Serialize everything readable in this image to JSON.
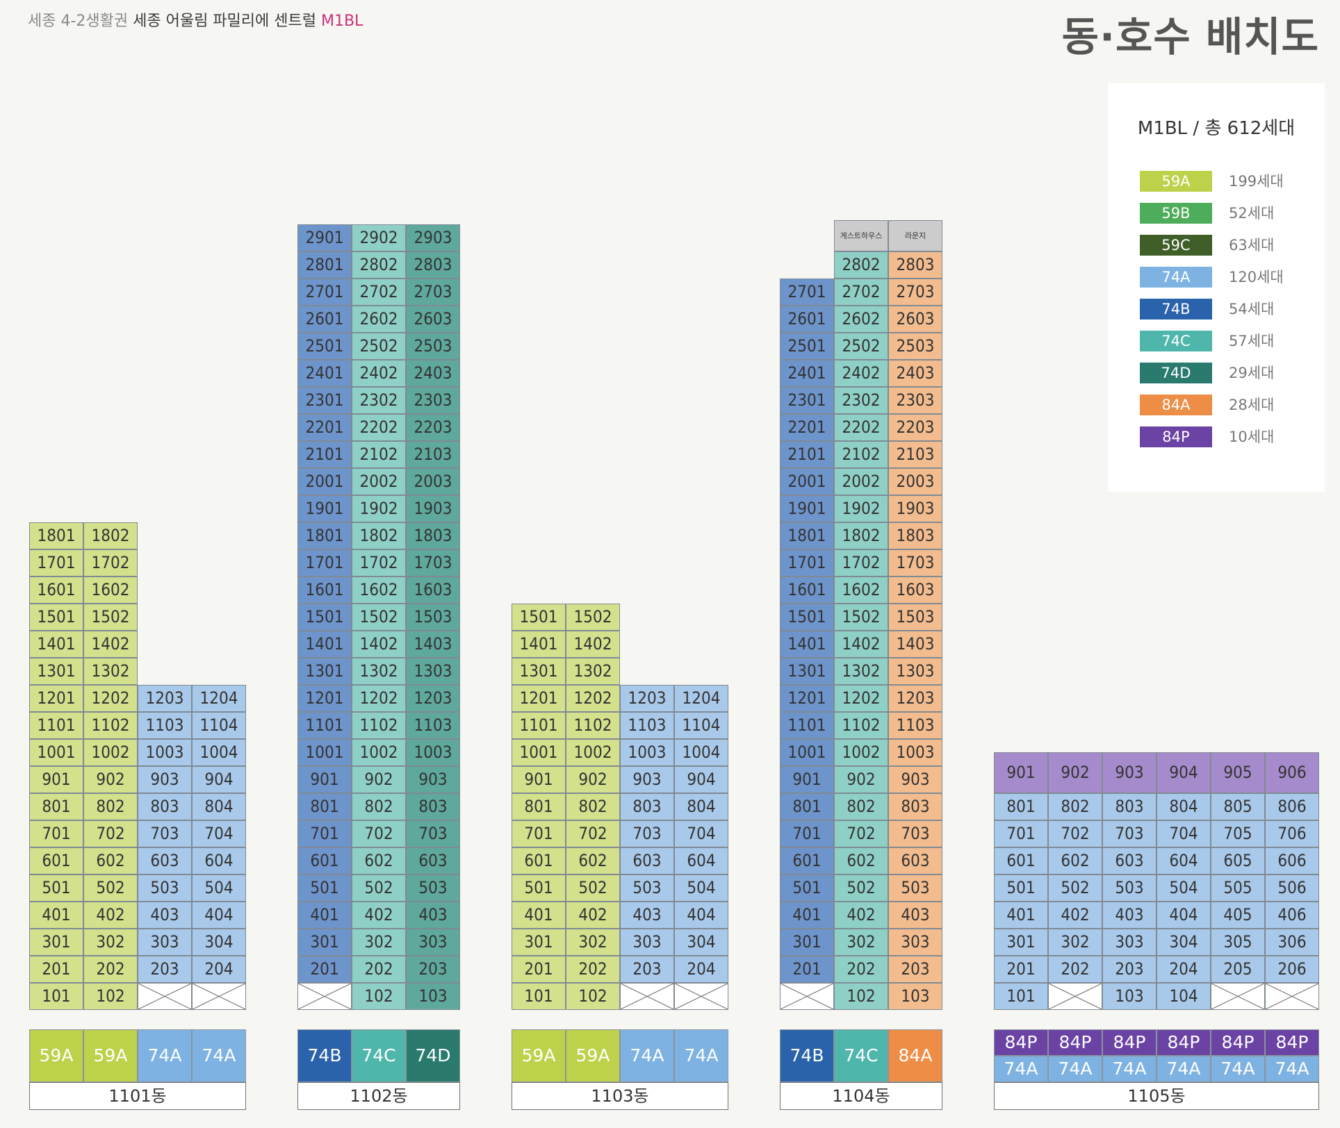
{
  "header": {
    "subtitle_a": "세종 4-2생활권 ",
    "subtitle_b": "세종 어울림 파밀리에 센트럴 ",
    "subtitle_c": "M1BL",
    "title": "동·호수 배치도"
  },
  "legend": {
    "title": "M1BL / 총 612세대",
    "items": [
      {
        "type": "59A",
        "count": "199세대"
      },
      {
        "type": "59B",
        "count": "52세대"
      },
      {
        "type": "59C",
        "count": "63세대"
      },
      {
        "type": "74A",
        "count": "120세대"
      },
      {
        "type": "74B",
        "count": "54세대"
      },
      {
        "type": "74C",
        "count": "57세대"
      },
      {
        "type": "74D",
        "count": "29세대"
      },
      {
        "type": "84A",
        "count": "28세대"
      },
      {
        "type": "84P",
        "count": "10세대"
      }
    ]
  },
  "colors": {
    "59A_cell": "#d3e08c",
    "59A": "#bdd14a",
    "59B": "#4dad5a",
    "59C": "#3f5e28",
    "74A_cell": "#a9c9ea",
    "74A": "#7eb2e2",
    "74B_cell": "#6e94cc",
    "74B": "#2a62ac",
    "74C_cell": "#8fd0c6",
    "74C": "#4fb6ab",
    "74D_cell": "#5ea89c",
    "74D": "#2a7a6e",
    "84A_cell": "#f3bc8e",
    "84A": "#ee8d46",
    "84P_cell": "#a58bcb",
    "84P": "#6a43a4",
    "special_cell": "#cccccc",
    "empty": "#ffffff"
  },
  "buildings": [
    {
      "name": "1101동",
      "lines": [
        {
          "type": "59A",
          "floors": [
            1,
            18
          ]
        },
        {
          "type": "59A",
          "floors": [
            1,
            18
          ]
        },
        {
          "type": "74A",
          "floors": [
            2,
            12
          ],
          "empty": [
            1
          ]
        },
        {
          "type": "74A",
          "floors": [
            2,
            12
          ],
          "empty": [
            1
          ]
        }
      ],
      "units": {
        "1": [
          "1801",
          "1701",
          "1601",
          "1501",
          "1401",
          "1301",
          "1201",
          "1101",
          "1001",
          "901",
          "801",
          "701",
          "601",
          "501",
          "401",
          "301",
          "201",
          "101"
        ],
        "2": [
          "1802",
          "1702",
          "1602",
          "1502",
          "1402",
          "1302",
          "1202",
          "1102",
          "1002",
          "902",
          "802",
          "702",
          "602",
          "502",
          "402",
          "302",
          "202",
          "102"
        ],
        "3": [
          "1203",
          "1103",
          "1003",
          "903",
          "803",
          "703",
          "603",
          "503",
          "403",
          "303",
          "203"
        ],
        "4": [
          "1204",
          "1104",
          "1004",
          "904",
          "804",
          "704",
          "604",
          "504",
          "404",
          "304",
          "204"
        ]
      }
    },
    {
      "name": "1102동",
      "lines": [
        {
          "type": "74B",
          "floors": [
            2,
            29
          ],
          "empty": [
            1
          ]
        },
        {
          "type": "74C",
          "floors": [
            1,
            29
          ]
        },
        {
          "type": "74D",
          "floors": [
            1,
            29
          ]
        }
      ],
      "units": {
        "1": [
          "2901",
          "2801",
          "2701",
          "2601",
          "2501",
          "2401",
          "2301",
          "2201",
          "2101",
          "2001",
          "1901",
          "1801",
          "1701",
          "1601",
          "1501",
          "1401",
          "1301",
          "1201",
          "1101",
          "1001",
          "901",
          "801",
          "701",
          "601",
          "501",
          "401",
          "301",
          "201"
        ],
        "2": [
          "2902",
          "2802",
          "2702",
          "2602",
          "2502",
          "2402",
          "2302",
          "2202",
          "2102",
          "2002",
          "1902",
          "1802",
          "1702",
          "1602",
          "1502",
          "1402",
          "1302",
          "1202",
          "1102",
          "1002",
          "902",
          "802",
          "702",
          "602",
          "502",
          "402",
          "302",
          "202",
          "102"
        ],
        "3": [
          "2903",
          "2803",
          "2703",
          "2603",
          "2503",
          "2403",
          "2303",
          "2203",
          "2103",
          "2003",
          "1903",
          "1803",
          "1703",
          "1603",
          "1503",
          "1403",
          "1303",
          "1203",
          "1103",
          "1003",
          "903",
          "803",
          "703",
          "603",
          "503",
          "403",
          "303",
          "203",
          "103"
        ]
      }
    },
    {
      "name": "1103동",
      "lines": [
        {
          "type": "59A",
          "floors": [
            1,
            15
          ]
        },
        {
          "type": "59A",
          "floors": [
            1,
            15
          ]
        },
        {
          "type": "74A",
          "floors": [
            2,
            12
          ],
          "empty": [
            1
          ]
        },
        {
          "type": "74A",
          "floors": [
            2,
            12
          ],
          "empty": [
            1
          ]
        }
      ],
      "units": {
        "1": [
          "1501",
          "1401",
          "1301",
          "1201",
          "1101",
          "1001",
          "901",
          "801",
          "701",
          "601",
          "501",
          "401",
          "301",
          "201",
          "101"
        ],
        "2": [
          "1502",
          "1402",
          "1302",
          "1202",
          "1102",
          "1002",
          "902",
          "802",
          "702",
          "602",
          "502",
          "402",
          "302",
          "202",
          "102"
        ],
        "3": [
          "1203",
          "1103",
          "1003",
          "903",
          "803",
          "703",
          "603",
          "503",
          "403",
          "303",
          "203"
        ],
        "4": [
          "1204",
          "1104",
          "1004",
          "904",
          "804",
          "704",
          "604",
          "504",
          "404",
          "304",
          "204"
        ]
      }
    },
    {
      "name": "1104동",
      "lines": [
        {
          "type": "74B",
          "floors": [
            2,
            27
          ],
          "empty": [
            1
          ]
        },
        {
          "type": "74C",
          "floors": [
            1,
            28
          ],
          "special": {
            "floor": 29,
            "label": "게스트하우스"
          }
        },
        {
          "type": "84A",
          "floors": [
            1,
            28
          ],
          "special": {
            "floor": 29,
            "label": "라운지"
          }
        }
      ],
      "units": {
        "1": [
          "2701",
          "2601",
          "2501",
          "2401",
          "2301",
          "2201",
          "2101",
          "2001",
          "1901",
          "1801",
          "1701",
          "1601",
          "1501",
          "1401",
          "1301",
          "1201",
          "1101",
          "1001",
          "901",
          "801",
          "701",
          "601",
          "501",
          "401",
          "301",
          "201"
        ],
        "2": [
          "2802",
          "2702",
          "2602",
          "2502",
          "2402",
          "2302",
          "2202",
          "2102",
          "2002",
          "1902",
          "1802",
          "1702",
          "1602",
          "1502",
          "1402",
          "1302",
          "1202",
          "1102",
          "1002",
          "902",
          "802",
          "702",
          "602",
          "502",
          "402",
          "302",
          "202",
          "102"
        ],
        "3": [
          "2803",
          "2703",
          "2603",
          "2503",
          "2403",
          "2303",
          "2203",
          "2103",
          "2003",
          "1903",
          "1803",
          "1703",
          "1603",
          "1503",
          "1403",
          "1303",
          "1203",
          "1103",
          "1003",
          "903",
          "803",
          "703",
          "603",
          "503",
          "403",
          "303",
          "203",
          "103"
        ]
      }
    },
    {
      "name": "1105동",
      "top_type": "84P",
      "lines": [
        {
          "type": "74A",
          "floors": [
            1,
            8
          ],
          "top": "901"
        },
        {
          "type": "74A",
          "floors": [
            2,
            8
          ],
          "empty": [
            1
          ],
          "top": "902"
        },
        {
          "type": "74A",
          "floors": [
            1,
            8
          ],
          "top": "903"
        },
        {
          "type": "74A",
          "floors": [
            1,
            8
          ],
          "top": "904"
        },
        {
          "type": "74A",
          "floors": [
            2,
            8
          ],
          "empty": [
            1
          ],
          "top": "905"
        },
        {
          "type": "74A",
          "floors": [
            2,
            8
          ],
          "empty": [
            1
          ],
          "top": "906"
        }
      ],
      "units": {
        "1": [
          "801",
          "701",
          "601",
          "501",
          "401",
          "301",
          "201",
          "101"
        ],
        "2": [
          "802",
          "702",
          "602",
          "502",
          "402",
          "302",
          "202"
        ],
        "3": [
          "803",
          "703",
          "603",
          "503",
          "403",
          "303",
          "203",
          "103"
        ],
        "4": [
          "804",
          "704",
          "604",
          "504",
          "404",
          "304",
          "204",
          "104"
        ],
        "5": [
          "805",
          "705",
          "605",
          "505",
          "405",
          "305",
          "205"
        ],
        "6": [
          "806",
          "706",
          "606",
          "506",
          "406",
          "306",
          "206"
        ]
      }
    }
  ]
}
